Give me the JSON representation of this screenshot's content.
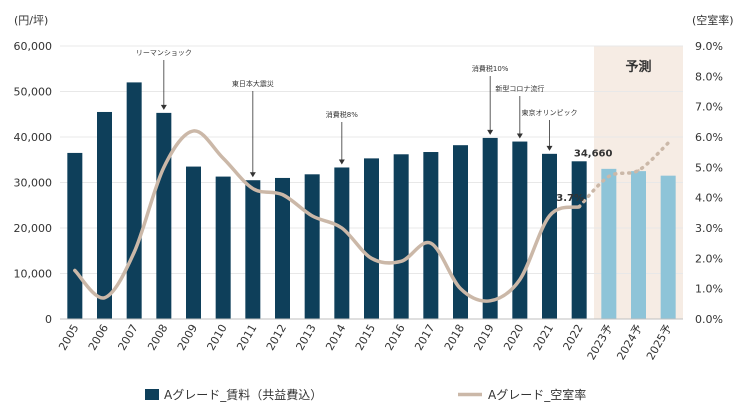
{
  "chart_data": {
    "type": "bar",
    "left_axis_unit": "(円/坪)",
    "right_axis_unit": "(空室率)",
    "categories": [
      "2005",
      "2006",
      "2007",
      "2008",
      "2009",
      "2010",
      "2011",
      "2012",
      "2013",
      "2014",
      "2015",
      "2016",
      "2017",
      "2018",
      "2019",
      "2020",
      "2021",
      "2022",
      "2023予",
      "2024予",
      "2025予"
    ],
    "left_ylim": [
      0,
      60000
    ],
    "left_ticks": [
      "0",
      "10,000",
      "20,000",
      "30,000",
      "40,000",
      "50,000",
      "60,000"
    ],
    "right_ylim": [
      0,
      9
    ],
    "right_ticks": [
      "0.0%",
      "1.0%",
      "2.0%",
      "3.0%",
      "4.0%",
      "5.0%",
      "6.0%",
      "7.0%",
      "8.0%",
      "9.0%"
    ],
    "forecast_label": "予測",
    "series": [
      {
        "name": "Aグレード_賃料（共益費込）",
        "type": "bar",
        "axis": "left",
        "color": "#0e3f5a",
        "forecast_color": "#8ec4d8",
        "values": [
          36500,
          45500,
          52000,
          45300,
          33500,
          31300,
          30500,
          31000,
          31800,
          33300,
          35300,
          36200,
          36700,
          38200,
          39800,
          39000,
          36300,
          34660,
          33000,
          32500,
          31500
        ]
      },
      {
        "name": "Aグレード_空室率",
        "type": "line",
        "axis": "right",
        "color": "#cbb8a8",
        "values": [
          1.6,
          0.7,
          2.2,
          5.0,
          6.2,
          5.3,
          4.3,
          4.1,
          3.4,
          3.0,
          2.0,
          1.9,
          2.5,
          1.0,
          0.6,
          1.3,
          3.4,
          3.7,
          4.7,
          4.9,
          5.8
        ]
      }
    ],
    "value_labels": [
      {
        "text": "34,660",
        "category": "2022"
      },
      {
        "text": "3.7%",
        "category": "2022"
      }
    ],
    "annotations": [
      {
        "text": "リーマンショック",
        "category": "2008"
      },
      {
        "text": "東日本大震災",
        "category": "2011"
      },
      {
        "text": "消費税8%",
        "category": "2014"
      },
      {
        "text": "消費税10%",
        "category": "2019"
      },
      {
        "text": "新型コロナ流行",
        "category": "2020"
      },
      {
        "text": "東京オリンピック",
        "category": "2021"
      }
    ],
    "legend": {
      "placement": "bottom"
    }
  }
}
